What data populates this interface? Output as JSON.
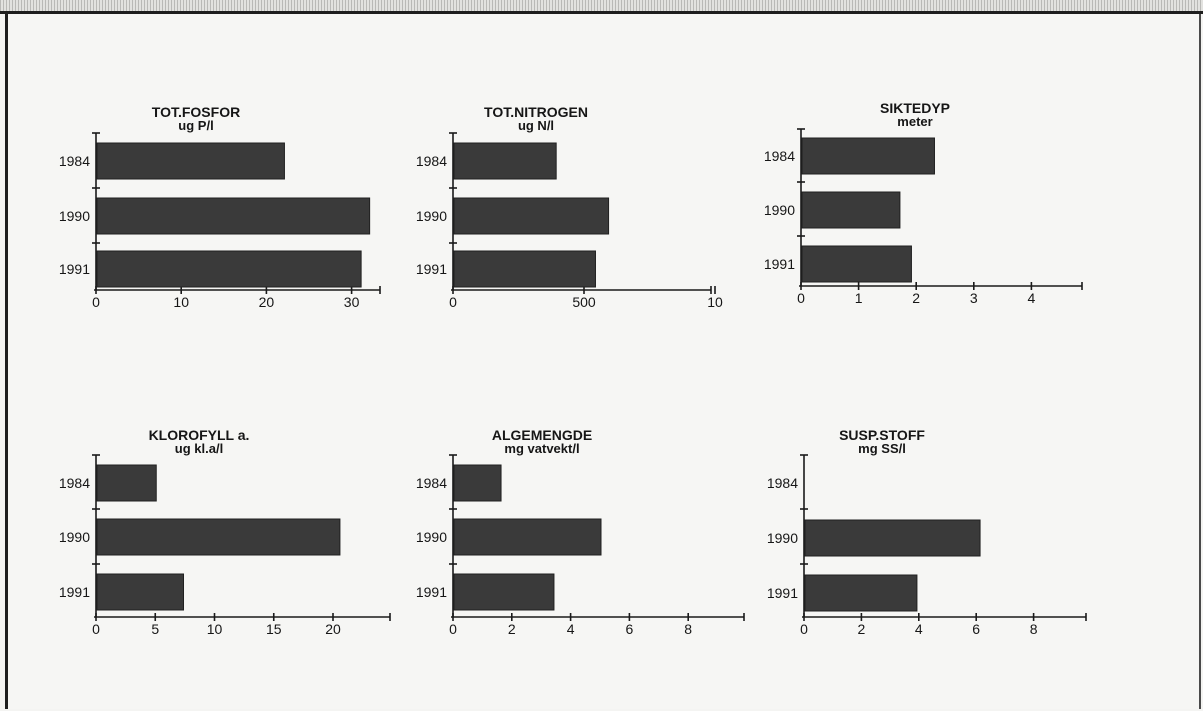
{
  "chart_data": [
    {
      "type": "bar",
      "orientation": "horizontal",
      "title": "TOT.FOSFOR",
      "subtitle": "ug P/l",
      "categories": [
        "1984",
        "1990",
        "1991"
      ],
      "values": [
        22,
        32,
        31
      ],
      "xticks": [
        "0",
        "10",
        "20",
        "30"
      ],
      "xlim": [
        0,
        35
      ]
    },
    {
      "type": "bar",
      "orientation": "horizontal",
      "title": "TOT.NITROGEN",
      "subtitle": "ug N/l",
      "categories": [
        "1984",
        "1990",
        "1991"
      ],
      "values": [
        390,
        590,
        540
      ],
      "xticks": [
        "0",
        "500",
        "10"
      ],
      "xlim": [
        0,
        1000
      ]
    },
    {
      "type": "bar",
      "orientation": "horizontal",
      "title": "SIKTEDYP",
      "subtitle": "meter",
      "categories": [
        "1984",
        "1990",
        "1991"
      ],
      "values": [
        2.3,
        1.7,
        1.9
      ],
      "xticks": [
        "0",
        "1",
        "2",
        "3",
        "4"
      ],
      "xlim": [
        0,
        5
      ]
    },
    {
      "type": "bar",
      "orientation": "horizontal",
      "title": "KLOROFYLL a.",
      "subtitle": "ug kl.a/l",
      "categories": [
        "1984",
        "1990",
        "1991"
      ],
      "values": [
        5,
        20.5,
        7.3
      ],
      "xticks": [
        "0",
        "5",
        "10",
        "15",
        "20"
      ],
      "xlim": [
        0,
        25
      ]
    },
    {
      "type": "bar",
      "orientation": "horizontal",
      "title": "ALGEMENGDE",
      "subtitle": "mg vatvekt/l",
      "categories": [
        "1984",
        "1990",
        "1991"
      ],
      "values": [
        1.6,
        5.0,
        3.4
      ],
      "xticks": [
        "0",
        "2",
        "4",
        "6",
        "8"
      ],
      "xlim": [
        0,
        10
      ]
    },
    {
      "type": "bar",
      "orientation": "horizontal",
      "title": "SUSP.STOFF",
      "subtitle": "mg SS/l",
      "categories": [
        "1984",
        "1990",
        "1991"
      ],
      "values": [
        0,
        6.1,
        3.9
      ],
      "xticks": [
        "0",
        "2",
        "4",
        "6",
        "8"
      ],
      "xlim": [
        0,
        10
      ]
    }
  ],
  "colors": {
    "bar": "#3a3a3a",
    "ink": "#161616",
    "background": "#f6f6f4"
  }
}
